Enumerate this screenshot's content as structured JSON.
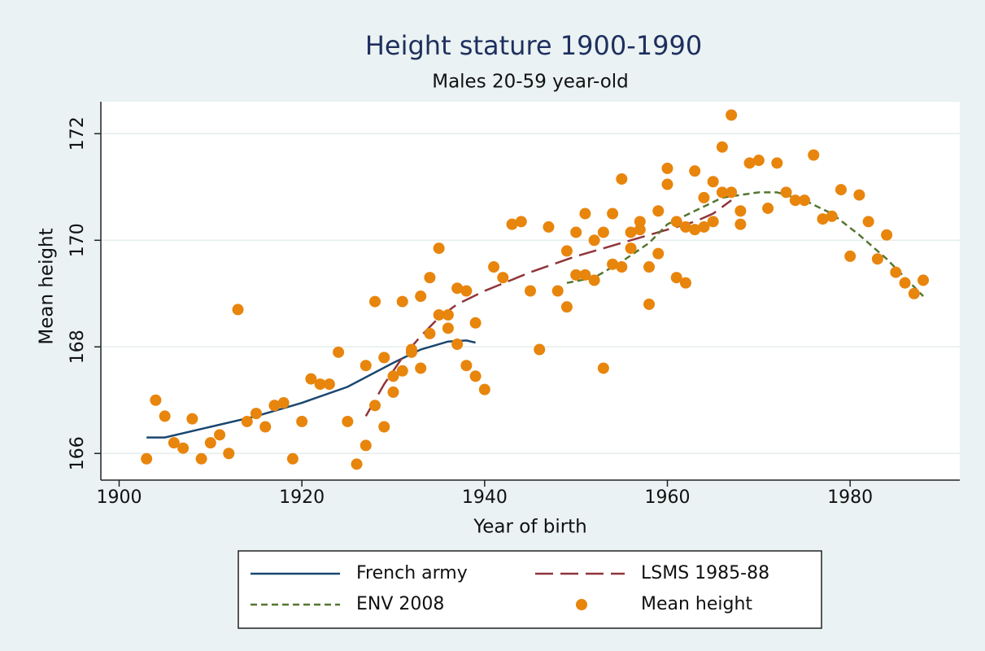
{
  "chart_data": {
    "type": "line",
    "title": "Height stature 1900-1990",
    "subtitle": "Males 20-59 year-old",
    "x_label": "Year of birth",
    "y_label": "Mean height",
    "xlim": [
      1898,
      1992
    ],
    "ylim": [
      165.5,
      172.6
    ],
    "xticks": [
      1900,
      1920,
      1940,
      1960,
      1980
    ],
    "yticks": [
      166,
      168,
      170,
      172
    ],
    "grid": true,
    "series": [
      {
        "name": "French army",
        "type": "line",
        "dash": "solid",
        "color": "#1a476f",
        "x": [
          1903,
          1905,
          1910,
          1915,
          1920,
          1925,
          1930,
          1933,
          1936,
          1938,
          1939
        ],
        "values": [
          166.3,
          166.3,
          166.5,
          166.7,
          166.95,
          167.25,
          167.7,
          167.95,
          168.1,
          168.12,
          168.08
        ]
      },
      {
        "name": "LSMS 1985-88",
        "type": "line",
        "dash": "long",
        "color": "#90353b",
        "x": [
          1927,
          1929,
          1931,
          1933,
          1935,
          1937,
          1940,
          1945,
          1950,
          1955,
          1960,
          1963,
          1965,
          1967
        ],
        "values": [
          166.7,
          167.3,
          167.8,
          168.2,
          168.55,
          168.8,
          169.05,
          169.4,
          169.7,
          169.95,
          170.2,
          170.35,
          170.5,
          170.75
        ]
      },
      {
        "name": "ENV 2008",
        "type": "line",
        "dash": "short",
        "color": "#55752f",
        "x": [
          1949,
          1952,
          1955,
          1958,
          1960,
          1963,
          1966,
          1970,
          1972,
          1975,
          1978,
          1981,
          1984,
          1986,
          1988
        ],
        "values": [
          169.2,
          169.3,
          169.6,
          169.95,
          170.3,
          170.55,
          170.8,
          170.9,
          170.9,
          170.75,
          170.5,
          170.1,
          169.65,
          169.3,
          168.95
        ]
      },
      {
        "name": "Mean height",
        "type": "scatter",
        "color": "#e8850c",
        "x": [
          1903,
          1904,
          1905,
          1906,
          1907,
          1908,
          1909,
          1910,
          1911,
          1912,
          1913,
          1914,
          1915,
          1916,
          1917,
          1918,
          1919,
          1920,
          1921,
          1922,
          1923,
          1924,
          1925,
          1926,
          1927,
          1927,
          1928,
          1928,
          1929,
          1929,
          1930,
          1930,
          1931,
          1931,
          1932,
          1932,
          1933,
          1933,
          1934,
          1934,
          1935,
          1935,
          1936,
          1936,
          1937,
          1937,
          1938,
          1938,
          1939,
          1939,
          1940,
          1941,
          1942,
          1943,
          1944,
          1945,
          1946,
          1947,
          1948,
          1949,
          1949,
          1950,
          1950,
          1951,
          1951,
          1952,
          1952,
          1953,
          1953,
          1954,
          1954,
          1955,
          1955,
          1956,
          1956,
          1957,
          1957,
          1958,
          1958,
          1959,
          1959,
          1960,
          1960,
          1961,
          1961,
          1962,
          1962,
          1963,
          1963,
          1964,
          1964,
          1965,
          1965,
          1966,
          1966,
          1967,
          1967,
          1968,
          1968,
          1969,
          1970,
          1971,
          1972,
          1973,
          1974,
          1975,
          1976,
          1977,
          1978,
          1979,
          1980,
          1981,
          1982,
          1983,
          1984,
          1985,
          1986,
          1987,
          1988
        ],
        "values": [
          165.9,
          167.0,
          166.7,
          166.2,
          166.1,
          166.65,
          165.9,
          166.2,
          166.35,
          166.0,
          168.7,
          166.6,
          166.75,
          166.5,
          166.9,
          166.95,
          165.9,
          166.6,
          167.4,
          167.3,
          167.3,
          167.9,
          166.6,
          165.8,
          166.15,
          167.65,
          166.9,
          168.85,
          166.5,
          167.8,
          167.15,
          167.45,
          167.55,
          168.85,
          167.95,
          167.9,
          167.6,
          168.95,
          168.25,
          169.3,
          168.6,
          169.85,
          168.6,
          168.35,
          168.05,
          169.1,
          167.65,
          169.05,
          167.45,
          168.45,
          167.2,
          169.5,
          169.3,
          170.3,
          170.35,
          169.05,
          167.95,
          170.25,
          169.05,
          168.75,
          169.8,
          170.15,
          169.35,
          170.5,
          169.35,
          170.0,
          169.25,
          167.6,
          170.15,
          170.5,
          169.55,
          171.15,
          169.5,
          169.85,
          170.15,
          170.35,
          170.2,
          168.8,
          169.5,
          170.55,
          169.75,
          171.35,
          171.05,
          170.35,
          169.3,
          169.2,
          170.25,
          171.3,
          170.2,
          170.8,
          170.25,
          171.1,
          170.35,
          171.75,
          170.9,
          172.35,
          170.9,
          170.55,
          170.3,
          171.45,
          171.5,
          170.6,
          171.45,
          170.9,
          170.75,
          170.75,
          171.6,
          170.4,
          170.45,
          170.95,
          169.7,
          170.85,
          170.35,
          169.65,
          170.1,
          169.4,
          169.2,
          169.0,
          169.25
        ]
      }
    ]
  }
}
